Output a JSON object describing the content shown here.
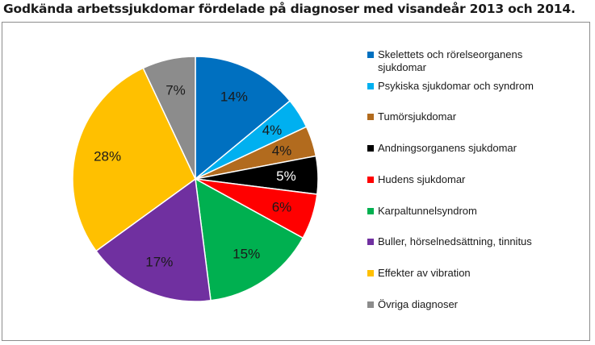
{
  "chart_data": {
    "type": "pie",
    "title": "Godkända arbetssjukdomar fördelade på diagnoser med visandeår 2013 och 2014.",
    "slices": [
      {
        "label": "Skelettets och rörelseorganens sjukdomar",
        "value": 14,
        "display": "14%",
        "color": "#0070c0",
        "text_color": "#1a1a1a"
      },
      {
        "label": "Psykiska sjukdomar och syndrom",
        "value": 4,
        "display": "4%",
        "color": "#00b0f0",
        "text_color": "#1a1a1a"
      },
      {
        "label": "Tumörsjukdomar",
        "value": 4,
        "display": "4%",
        "color": "#b26b1e",
        "text_color": "#1a1a1a"
      },
      {
        "label": "Andningsorganens sjukdomar",
        "value": 5,
        "display": "5%",
        "color": "#000000",
        "text_color": "#ffffff"
      },
      {
        "label": "Hudens sjukdomar",
        "value": 6,
        "display": "6%",
        "color": "#ff0000",
        "text_color": "#1a1a1a"
      },
      {
        "label": "Karpaltunnelsyndrom",
        "value": 15,
        "display": "15%",
        "color": "#00b050",
        "text_color": "#1a1a1a"
      },
      {
        "label": "Buller, hörselnedsättning, tinnitus",
        "value": 17,
        "display": "17%",
        "color": "#7030a0",
        "text_color": "#1a1a1a"
      },
      {
        "label": "Effekter av vibration",
        "value": 28,
        "display": "28%",
        "color": "#ffc000",
        "text_color": "#1a1a1a"
      },
      {
        "label": "Övriga diagnoser",
        "value": 7,
        "display": "7%",
        "color": "#8c8c8c",
        "text_color": "#1a1a1a"
      }
    ],
    "legend_position": "right"
  }
}
